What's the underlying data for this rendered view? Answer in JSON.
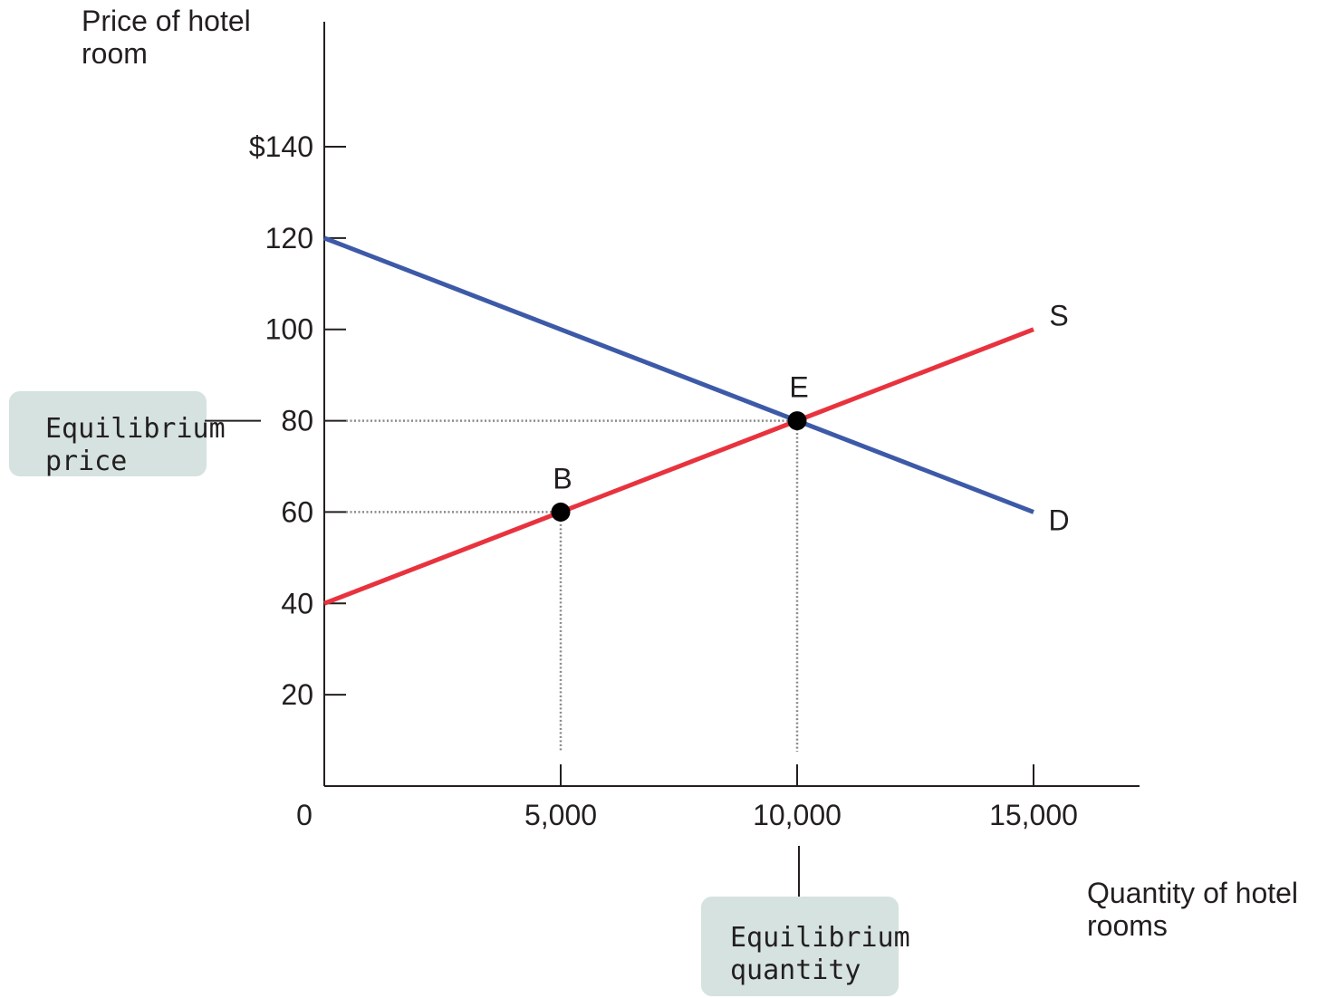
{
  "chart_data": {
    "type": "line",
    "ylabel": [
      "Price of hotel",
      "room"
    ],
    "xlabel": [
      "Quantity of hotel",
      "rooms"
    ],
    "x_ticks": [
      {
        "value": 0,
        "label": "0"
      },
      {
        "value": 5000,
        "label": "5,000"
      },
      {
        "value": 10000,
        "label": "10,000"
      },
      {
        "value": 15000,
        "label": "15,000"
      }
    ],
    "y_ticks": [
      {
        "value": 20,
        "label": "20"
      },
      {
        "value": 40,
        "label": "40"
      },
      {
        "value": 60,
        "label": "60"
      },
      {
        "value": 80,
        "label": "80"
      },
      {
        "value": 100,
        "label": "100"
      },
      {
        "value": 120,
        "label": "120"
      },
      {
        "value": 140,
        "label": "$140"
      }
    ],
    "xlim": [
      0,
      17200
    ],
    "ylim": [
      0,
      165
    ],
    "grid": false,
    "series": [
      {
        "name": "D",
        "color": "#3d5aa8",
        "points": [
          [
            0,
            120
          ],
          [
            15000,
            60
          ]
        ]
      },
      {
        "name": "S",
        "color": "#e8333f",
        "points": [
          [
            0,
            40
          ],
          [
            15000,
            100
          ]
        ]
      }
    ],
    "points": [
      {
        "name": "B",
        "x": 5000,
        "y": 60
      },
      {
        "name": "E",
        "x": 10000,
        "y": 80
      }
    ],
    "callouts": {
      "price": {
        "lines": [
          "Equilibrium",
          "price"
        ],
        "value": 80
      },
      "quantity": {
        "lines": [
          "Equilibrium",
          "quantity"
        ],
        "value": 10000
      }
    }
  },
  "colors": {
    "axis": "#231f20",
    "callout_fill": "#d5e2df",
    "dotted_guide": "#8a8a8a"
  }
}
